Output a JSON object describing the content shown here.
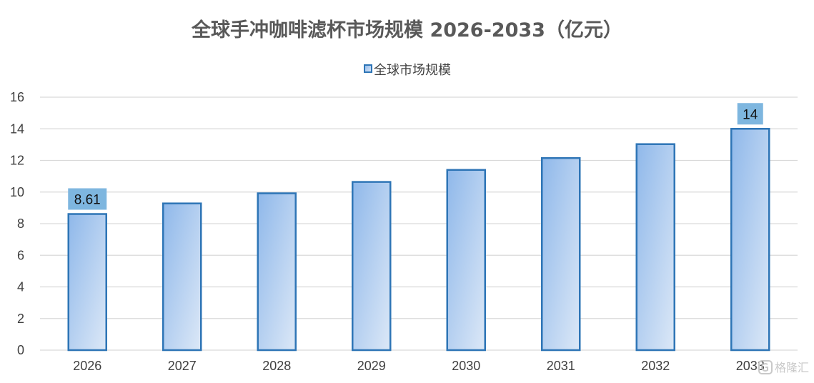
{
  "chart_data": {
    "type": "bar",
    "title": "全球手冲咖啡滤杯市场规模 2026-2033（亿元）",
    "legend": {
      "position": "top",
      "entries": [
        "全球市场规模"
      ]
    },
    "categories": [
      "2026",
      "2027",
      "2028",
      "2029",
      "2030",
      "2031",
      "2032",
      "2033"
    ],
    "series": [
      {
        "name": "全球市场规模",
        "values": [
          8.61,
          9.28,
          9.92,
          10.64,
          11.4,
          12.15,
          13.03,
          14
        ],
        "data_labels": [
          "8.61",
          "",
          "",
          "",
          "",
          "",
          "",
          "14"
        ]
      }
    ],
    "ylim": [
      0,
      16
    ],
    "yticks": [
      0,
      2,
      4,
      6,
      8,
      10,
      12,
      14,
      16
    ],
    "grid": true,
    "colors": {
      "bar_fill_top": "#8fb8ea",
      "bar_fill_bottom": "#dce8f7",
      "bar_stroke": "#2e75b6",
      "grid": "#d9d9d9",
      "label_box": "#7eb6df",
      "title": "#595959",
      "text": "#404040"
    }
  },
  "watermark": {
    "icon": "watermark-logo-icon",
    "text": "格隆汇"
  }
}
